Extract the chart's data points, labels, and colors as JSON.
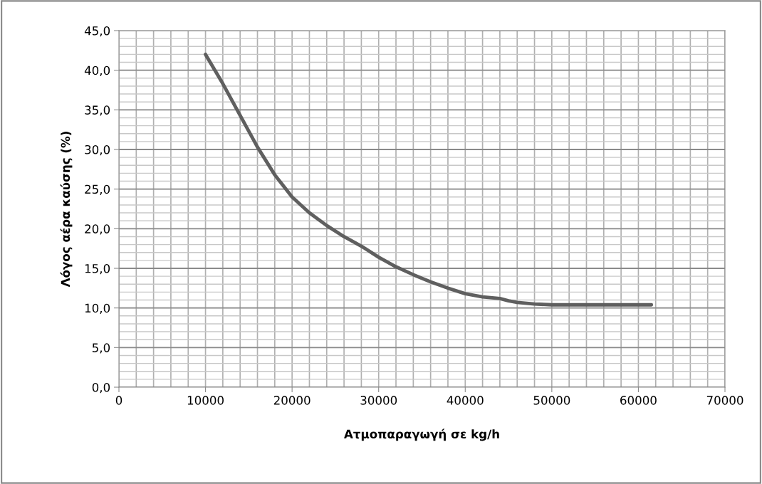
{
  "chart_data": {
    "type": "line",
    "xlabel": "Ατμοπαραγωγή σε kg/h",
    "ylabel": "Λόγος αέρα καύσης (%)",
    "x": [
      10000,
      12000,
      14000,
      16000,
      18000,
      20000,
      22000,
      24000,
      26000,
      28000,
      30000,
      32000,
      34000,
      36000,
      38000,
      40000,
      42000,
      44000,
      45000,
      46000,
      48000,
      50000,
      55000,
      60000,
      61500
    ],
    "series": [
      {
        "color": "#5f5f5f",
        "values": [
          42.0,
          38.3,
          34.3,
          30.3,
          26.8,
          24.0,
          22.0,
          20.4,
          19.0,
          17.8,
          16.4,
          15.2,
          14.2,
          13.3,
          12.5,
          11.8,
          11.4,
          11.2,
          10.9,
          10.7,
          10.5,
          10.4,
          10.4,
          10.4,
          10.4
        ]
      }
    ],
    "xlim": [
      0,
      70000
    ],
    "xticks": [
      0,
      10000,
      20000,
      30000,
      40000,
      50000,
      60000,
      70000
    ],
    "ylim": [
      0,
      45
    ],
    "yticks": [
      {
        "value": 0,
        "label": "0,0"
      },
      {
        "value": 5,
        "label": "5,0"
      },
      {
        "value": 10,
        "label": "10,0"
      },
      {
        "value": 15,
        "label": "15,0"
      },
      {
        "value": 20,
        "label": "20,0"
      },
      {
        "value": 25,
        "label": "25,0"
      },
      {
        "value": 30,
        "label": "30,0"
      },
      {
        "value": 35,
        "label": "35,0"
      },
      {
        "value": 40,
        "label": "40,0"
      },
      {
        "value": 45,
        "label": "45,0"
      }
    ],
    "grid": true,
    "marker": "none",
    "line_style": "solid"
  }
}
